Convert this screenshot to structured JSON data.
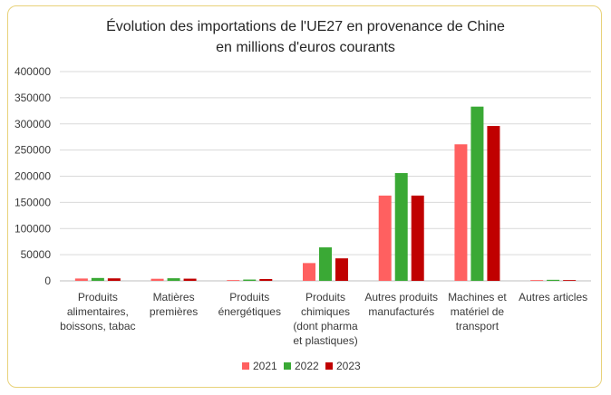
{
  "chart_data": {
    "type": "bar",
    "title_lines": [
      "Évolution des importations de l'UE27 en provenance de Chine",
      "en millions d'euros courants"
    ],
    "categories": [
      [
        "Produits",
        "alimentaires,",
        "boissons, tabac"
      ],
      [
        "Matières",
        "premières"
      ],
      [
        "Produits",
        "énergétiques"
      ],
      [
        "Produits",
        "chimiques",
        "(dont pharma",
        "et plastiques)"
      ],
      [
        "Autres produits",
        "manufacturés"
      ],
      [
        "Machines et",
        "matériel de",
        "transport"
      ],
      [
        "Autres articles"
      ]
    ],
    "series": [
      {
        "name": "2021",
        "color": "#ff6060",
        "values": [
          4500,
          4000,
          1500,
          34000,
          163000,
          261000,
          1500
        ]
      },
      {
        "name": "2022",
        "color": "#3aa935",
        "values": [
          5500,
          5000,
          2500,
          64000,
          206000,
          333000,
          2000
        ]
      },
      {
        "name": "2023",
        "color": "#c00000",
        "values": [
          4800,
          4200,
          3500,
          43000,
          163000,
          296000,
          1500
        ]
      }
    ],
    "ylim": [
      0,
      400000
    ],
    "yticks": [
      "0",
      "50000",
      "100000",
      "150000",
      "200000",
      "250000",
      "300000",
      "350000",
      "400000"
    ],
    "grid": true,
    "legend_position": "bottom"
  }
}
